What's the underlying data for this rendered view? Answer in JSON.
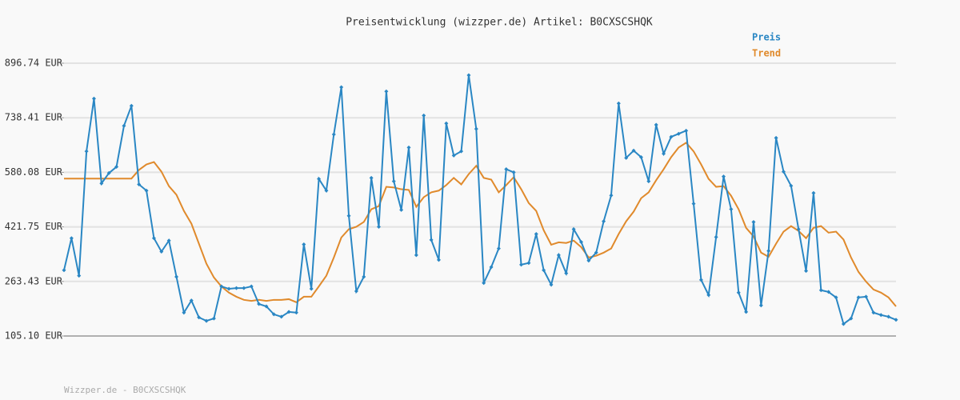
{
  "chart_data": {
    "type": "line",
    "title": "Preisentwicklung (wizzper.de) Artikel: B0CXSCSHQK",
    "footer": "Wizzper.de - B0CXSCSHQK",
    "ylim": [
      105.1,
      896.74
    ],
    "yticks": [
      {
        "value": 105.1,
        "label": "105.10 EUR"
      },
      {
        "value": 263.43,
        "label": "263.43 EUR"
      },
      {
        "value": 421.75,
        "label": "421.75 EUR"
      },
      {
        "value": 580.08,
        "label": "580.08 EUR"
      },
      {
        "value": 738.41,
        "label": "738.41 EUR"
      },
      {
        "value": 896.74,
        "label": "896.74 EUR"
      }
    ],
    "grid": true,
    "legend": "top-right",
    "series": [
      {
        "name": "Preis",
        "color": "#2a87c4",
        "markers": true,
        "values": [
          296,
          389,
          280,
          641,
          794,
          548,
          578,
          596,
          715,
          773,
          545,
          527,
          389,
          350,
          382,
          277,
          173,
          208,
          159,
          149,
          156,
          249,
          242,
          244,
          244,
          249,
          198,
          191,
          168,
          161,
          175,
          173,
          371,
          242,
          561,
          527,
          690,
          827,
          454,
          235,
          277,
          564,
          422,
          815,
          554,
          471,
          652,
          340,
          745,
          384,
          326,
          722,
          629,
          641,
          862,
          706,
          259,
          305,
          359,
          589,
          580,
          312,
          317,
          401,
          296,
          254,
          340,
          287,
          415,
          378,
          324,
          347,
          438,
          513,
          780,
          622,
          643,
          624,
          554,
          718,
          634,
          683,
          692,
          701,
          489,
          268,
          224,
          392,
          568,
          473,
          231,
          175,
          436,
          194,
          352,
          680,
          582,
          541,
          415,
          294,
          520,
          238,
          233,
          217,
          140,
          156,
          217,
          219,
          173,
          166,
          161,
          152
        ]
      },
      {
        "name": "Trend",
        "color": "#e08a2c",
        "markers": false,
        "values": [
          562,
          562,
          562,
          562,
          562,
          562,
          562,
          562,
          562,
          562,
          587,
          603,
          610,
          582,
          540,
          515,
          468,
          431,
          373,
          315,
          275,
          249,
          231,
          219,
          210,
          207,
          210,
          207,
          210,
          210,
          212,
          203,
          219,
          219,
          249,
          280,
          333,
          391,
          415,
          422,
          436,
          473,
          482,
          538,
          536,
          531,
          529,
          480,
          508,
          522,
          527,
          543,
          564,
          545,
          575,
          599,
          564,
          559,
          522,
          543,
          566,
          531,
          491,
          468,
          412,
          370,
          377,
          375,
          382,
          363,
          333,
          338,
          347,
          359,
          401,
          438,
          466,
          505,
          522,
          557,
          589,
          624,
          652,
          666,
          641,
          603,
          561,
          538,
          540,
          512,
          473,
          419,
          394,
          347,
          335,
          373,
          408,
          424,
          410,
          389,
          419,
          424,
          405,
          408,
          385,
          333,
          291,
          263,
          240,
          231,
          217,
          191
        ]
      }
    ]
  }
}
